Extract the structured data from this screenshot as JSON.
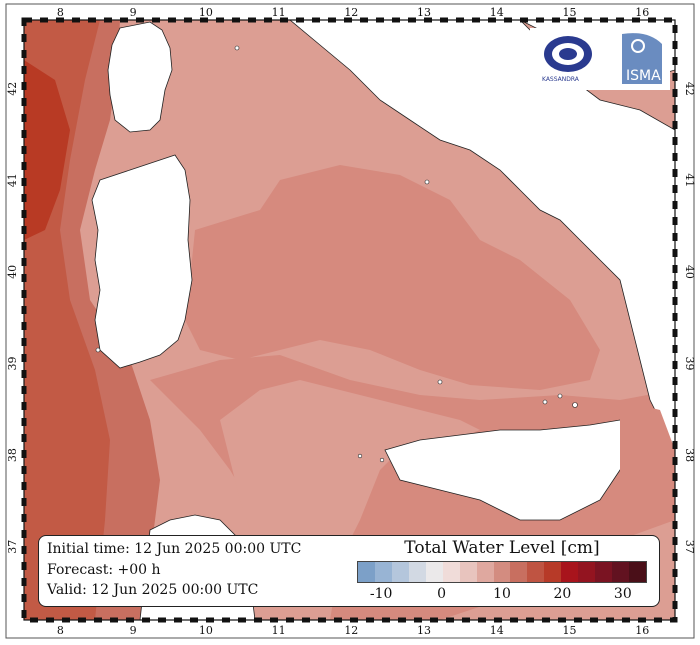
{
  "info": {
    "initial_time": "Initial time: 12 Jun 2025 00:00 UTC",
    "forecast": "Forecast: +00 h",
    "valid": "Valid: 12 Jun 2025 00:00 UTC"
  },
  "colorbar": {
    "title": "Total Water Level [cm]",
    "ticks": [
      "-10",
      "0",
      "10",
      "20",
      "30"
    ],
    "colors": [
      "#7ca0c8",
      "#98b4d4",
      "#b4c6dc",
      "#d2d9e3",
      "#ebe9ea",
      "#f0dcd9",
      "#e8c4be",
      "#dfa89f",
      "#d38c80",
      "#c86f60",
      "#bf5442",
      "#b73a28",
      "#a8141c",
      "#931420",
      "#7a1322",
      "#621220",
      "#4a0f18"
    ]
  },
  "axes": {
    "lon_ticks": [
      "8",
      "9",
      "10",
      "11",
      "12",
      "13",
      "14",
      "15",
      "16"
    ],
    "lat_ticks": [
      "37",
      "38",
      "39",
      "40",
      "41",
      "42"
    ]
  },
  "logos": {
    "left_text": "KASSANDRA",
    "right_text": "ISMAR"
  },
  "colors": {
    "land": "#ffffff",
    "sea_light": "#dc9e93",
    "sea_mid": "#d68a7e",
    "sea_dark": "#c85c46",
    "sea_darkest": "#b83a24"
  }
}
